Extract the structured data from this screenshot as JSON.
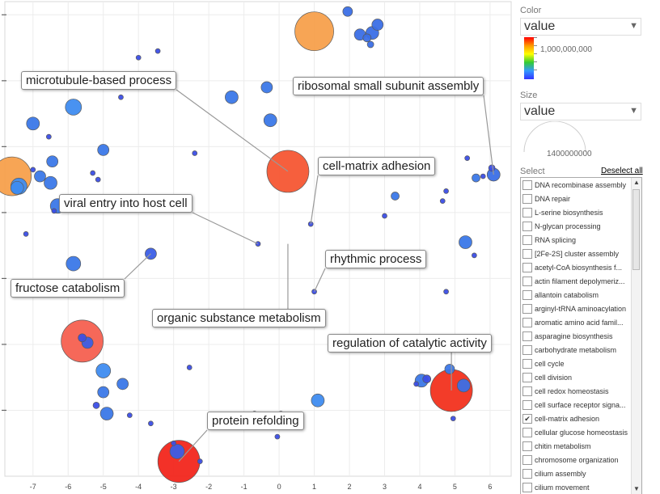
{
  "chart_data": {
    "type": "scatter",
    "title": "",
    "xlabel": "",
    "ylabel": "",
    "xlim": [
      -7.8,
      6.6
    ],
    "ylim": [
      -7.3,
      7.1
    ],
    "x_ticks": [
      -7,
      -6,
      -5,
      -4,
      -3,
      -2,
      -1,
      0,
      1,
      2,
      3,
      4,
      5,
      6
    ],
    "y_ticks": [
      -5.3,
      -3.3,
      -1.3,
      0.7,
      2.7,
      4.7,
      6.7
    ],
    "grid": true,
    "color_scale": [
      "#3a3aff",
      "#3399ff",
      "#33cc33",
      "#ffee00",
      "#ff9900",
      "#ff3300"
    ],
    "points": [
      {
        "x": 1.0,
        "y": 6.2,
        "r": 24,
        "c": "#f7a04c"
      },
      {
        "x": 1.95,
        "y": 6.8,
        "r": 6,
        "c": "#3b6fe6"
      },
      {
        "x": 2.3,
        "y": 6.1,
        "r": 7,
        "c": "#3b6fe6"
      },
      {
        "x": 2.5,
        "y": 6.0,
        "r": 5,
        "c": "#3b6fe6"
      },
      {
        "x": 2.65,
        "y": 6.15,
        "r": 8,
        "c": "#3b6fe6"
      },
      {
        "x": 2.8,
        "y": 6.4,
        "r": 7,
        "c": "#3b6fe6"
      },
      {
        "x": 2.6,
        "y": 5.8,
        "r": 4,
        "c": "#3b6fe6"
      },
      {
        "x": -4.0,
        "y": 5.4,
        "r": 3,
        "c": "#3b4ee6"
      },
      {
        "x": -3.45,
        "y": 5.6,
        "r": 3,
        "c": "#3b4ee6"
      },
      {
        "x": -4.5,
        "y": 4.2,
        "r": 3,
        "c": "#3b4ee6"
      },
      {
        "x": -0.35,
        "y": 4.5,
        "r": 7,
        "c": "#3b78e8"
      },
      {
        "x": -1.35,
        "y": 4.2,
        "r": 8,
        "c": "#3b78e8"
      },
      {
        "x": -5.85,
        "y": 3.9,
        "r": 10,
        "c": "#3f8cf0"
      },
      {
        "x": -7.0,
        "y": 3.4,
        "r": 8,
        "c": "#3b78e8"
      },
      {
        "x": -0.25,
        "y": 3.5,
        "r": 8,
        "c": "#3b78e8"
      },
      {
        "x": -6.55,
        "y": 3.0,
        "r": 3,
        "c": "#3b4ee6"
      },
      {
        "x": -5.0,
        "y": 2.6,
        "r": 7,
        "c": "#3b78e8"
      },
      {
        "x": -2.4,
        "y": 2.5,
        "r": 3,
        "c": "#3b4ee6"
      },
      {
        "x": -6.45,
        "y": 2.25,
        "r": 7,
        "c": "#3b78e8"
      },
      {
        "x": -7.6,
        "y": 1.8,
        "r": 24,
        "c": "#f7a04c"
      },
      {
        "x": -6.8,
        "y": 1.8,
        "r": 7,
        "c": "#3b78e8"
      },
      {
        "x": -7.45,
        "y": 1.45,
        "r": 8,
        "c": "#3f8cf0"
      },
      {
        "x": -7.0,
        "y": 2.0,
        "r": 3,
        "c": "#3b4ee6"
      },
      {
        "x": -6.5,
        "y": 1.6,
        "r": 8,
        "c": "#3b78e8"
      },
      {
        "x": -5.3,
        "y": 1.9,
        "r": 3,
        "c": "#3b4ee6"
      },
      {
        "x": -5.15,
        "y": 1.7,
        "r": 3,
        "c": "#3b4ee6"
      },
      {
        "x": 0.25,
        "y": 1.95,
        "r": 26,
        "c": "#f55633"
      },
      {
        "x": 5.35,
        "y": 2.35,
        "r": 3,
        "c": "#3b4ee6"
      },
      {
        "x": 5.6,
        "y": 1.75,
        "r": 5,
        "c": "#3b78e8"
      },
      {
        "x": 5.8,
        "y": 1.8,
        "r": 3,
        "c": "#3b4ee6"
      },
      {
        "x": 6.05,
        "y": 2.05,
        "r": 4,
        "c": "#3b4ee6"
      },
      {
        "x": 6.1,
        "y": 1.85,
        "r": 8,
        "c": "#3b6fe6"
      },
      {
        "x": 3.3,
        "y": 1.2,
        "r": 5,
        "c": "#3b78e8"
      },
      {
        "x": 4.75,
        "y": 1.35,
        "r": 3,
        "c": "#3b4ee6"
      },
      {
        "x": 4.65,
        "y": 1.05,
        "r": 3,
        "c": "#3b4ee6"
      },
      {
        "x": -7.4,
        "y": 1.5,
        "r": 10,
        "c": "#3f8cf0"
      },
      {
        "x": -6.3,
        "y": 0.9,
        "r": 9,
        "c": "#3b78e8"
      },
      {
        "x": -6.4,
        "y": 0.75,
        "r": 3,
        "c": "#3b4ee6"
      },
      {
        "x": 0.9,
        "y": 0.35,
        "r": 3,
        "c": "#3b4ee6"
      },
      {
        "x": 3.0,
        "y": 0.6,
        "r": 3,
        "c": "#3b4ee6"
      },
      {
        "x": -7.2,
        "y": 0.05,
        "r": 3,
        "c": "#3b4ee6"
      },
      {
        "x": -0.6,
        "y": -0.25,
        "r": 3,
        "c": "#3b4ee6"
      },
      {
        "x": 5.3,
        "y": -0.2,
        "r": 8,
        "c": "#3b78e8"
      },
      {
        "x": 5.55,
        "y": -0.6,
        "r": 3,
        "c": "#3b4ee6"
      },
      {
        "x": -3.65,
        "y": -0.55,
        "r": 7,
        "c": "#3b5ee6"
      },
      {
        "x": -5.85,
        "y": -0.85,
        "r": 9,
        "c": "#3b78e8"
      },
      {
        "x": 1.0,
        "y": -1.7,
        "r": 3,
        "c": "#3b4ee6"
      },
      {
        "x": 4.75,
        "y": -1.7,
        "r": 3,
        "c": "#3b4ee6"
      },
      {
        "x": -5.6,
        "y": -3.2,
        "r": 26,
        "c": "#f56050"
      },
      {
        "x": -5.6,
        "y": -3.1,
        "r": 5,
        "c": "#3b4ee6"
      },
      {
        "x": -5.45,
        "y": -3.25,
        "r": 7,
        "c": "#3b5ee6"
      },
      {
        "x": -2.55,
        "y": -4.0,
        "r": 3,
        "c": "#3b4ee6"
      },
      {
        "x": -5.0,
        "y": -4.1,
        "r": 9,
        "c": "#3f8cf0"
      },
      {
        "x": 4.85,
        "y": -4.05,
        "r": 6,
        "c": "#3b78e8"
      },
      {
        "x": 4.05,
        "y": -4.4,
        "r": 8,
        "c": "#3b78e8"
      },
      {
        "x": 4.2,
        "y": -4.35,
        "r": 5,
        "c": "#3b4ee6"
      },
      {
        "x": 3.9,
        "y": -4.5,
        "r": 3,
        "c": "#3b4ee6"
      },
      {
        "x": 4.9,
        "y": -4.7,
        "r": 26,
        "c": "#f2311e"
      },
      {
        "x": 5.25,
        "y": -4.55,
        "r": 8,
        "c": "#3b6fe6"
      },
      {
        "x": -5.0,
        "y": -4.75,
        "r": 7,
        "c": "#3b78e8"
      },
      {
        "x": -4.45,
        "y": -4.5,
        "r": 7,
        "c": "#3b78e8"
      },
      {
        "x": 1.1,
        "y": -5.0,
        "r": 8,
        "c": "#3f8cf0"
      },
      {
        "x": -5.2,
        "y": -5.15,
        "r": 4,
        "c": "#3b4ee6"
      },
      {
        "x": -4.9,
        "y": -5.4,
        "r": 8,
        "c": "#3b78e8"
      },
      {
        "x": -4.25,
        "y": -5.45,
        "r": 3,
        "c": "#3b4ee6"
      },
      {
        "x": -3.65,
        "y": -5.7,
        "r": 3,
        "c": "#3b4ee6"
      },
      {
        "x": -0.7,
        "y": -5.4,
        "r": 3,
        "c": "#3b4ee6"
      },
      {
        "x": 0.05,
        "y": -5.4,
        "r": 3,
        "c": "#3b4ee6"
      },
      {
        "x": 4.95,
        "y": -5.55,
        "r": 3,
        "c": "#3b4ee6"
      },
      {
        "x": -0.05,
        "y": -6.1,
        "r": 3,
        "c": "#3b4ee6"
      },
      {
        "x": -3.0,
        "y": -6.3,
        "r": 3,
        "c": "#3b4ee6"
      },
      {
        "x": -2.9,
        "y": -6.55,
        "r": 9,
        "c": "#3b5ee6"
      },
      {
        "x": -2.85,
        "y": -6.85,
        "r": 26,
        "c": "#f2261c"
      },
      {
        "x": -2.25,
        "y": -6.85,
        "r": 3,
        "c": "#3b4ee6"
      }
    ],
    "annotations": [
      {
        "text": "microtubule-based process",
        "px": 0.25,
        "py": 1.95
      },
      {
        "text": "ribosomal small subunit assembly",
        "px": 6.1,
        "py": 1.85
      },
      {
        "text": "cell-matrix adhesion",
        "px": 0.9,
        "py": 0.35
      },
      {
        "text": "viral entry into host cell",
        "px": -0.6,
        "py": -0.25
      },
      {
        "text": "rhythmic process",
        "px": 1.0,
        "py": -1.7
      },
      {
        "text": "fructose catabolism",
        "px": -3.65,
        "py": -0.55
      },
      {
        "text": "organic substance metabolism",
        "px": 0.25,
        "py": -0.25
      },
      {
        "text": "regulation of catalytic activity",
        "px": 4.9,
        "py": -4.7
      },
      {
        "text": "protein refolding",
        "px": -2.85,
        "py": -6.85
      }
    ]
  },
  "panel": {
    "color_title": "Color",
    "color_value": "value",
    "color_max": "1,000,000,000",
    "size_title": "Size",
    "size_value": "value",
    "size_max": "1400000000",
    "select_title": "Select",
    "deselect_label": "Deselect all",
    "items": [
      {
        "label": "DNA recombinase assembly",
        "checked": false
      },
      {
        "label": "DNA repair",
        "checked": false
      },
      {
        "label": "L-serine biosynthesis",
        "checked": false
      },
      {
        "label": "N-glycan processing",
        "checked": false
      },
      {
        "label": "RNA splicing",
        "checked": false
      },
      {
        "label": "[2Fe-2S] cluster assembly",
        "checked": false
      },
      {
        "label": "acetyl-CoA biosynthesis f...",
        "checked": false
      },
      {
        "label": "actin filament depolymeriz...",
        "checked": false
      },
      {
        "label": "allantoin catabolism",
        "checked": false
      },
      {
        "label": "arginyl-tRNA aminoacylation",
        "checked": false
      },
      {
        "label": "aromatic amino acid famil...",
        "checked": false
      },
      {
        "label": "asparagine biosynthesis",
        "checked": false
      },
      {
        "label": "carbohydrate metabolism",
        "checked": false
      },
      {
        "label": "cell cycle",
        "checked": false
      },
      {
        "label": "cell division",
        "checked": false
      },
      {
        "label": "cell redox homeostasis",
        "checked": false
      },
      {
        "label": "cell surface receptor signa...",
        "checked": false
      },
      {
        "label": "cell-matrix adhesion",
        "checked": true
      },
      {
        "label": "cellular glucose homeostasis",
        "checked": false
      },
      {
        "label": "chitin metabolism",
        "checked": false
      },
      {
        "label": "chromosome organization",
        "checked": false
      },
      {
        "label": "cilium assembly",
        "checked": false
      },
      {
        "label": "cilium movement",
        "checked": false
      }
    ]
  }
}
